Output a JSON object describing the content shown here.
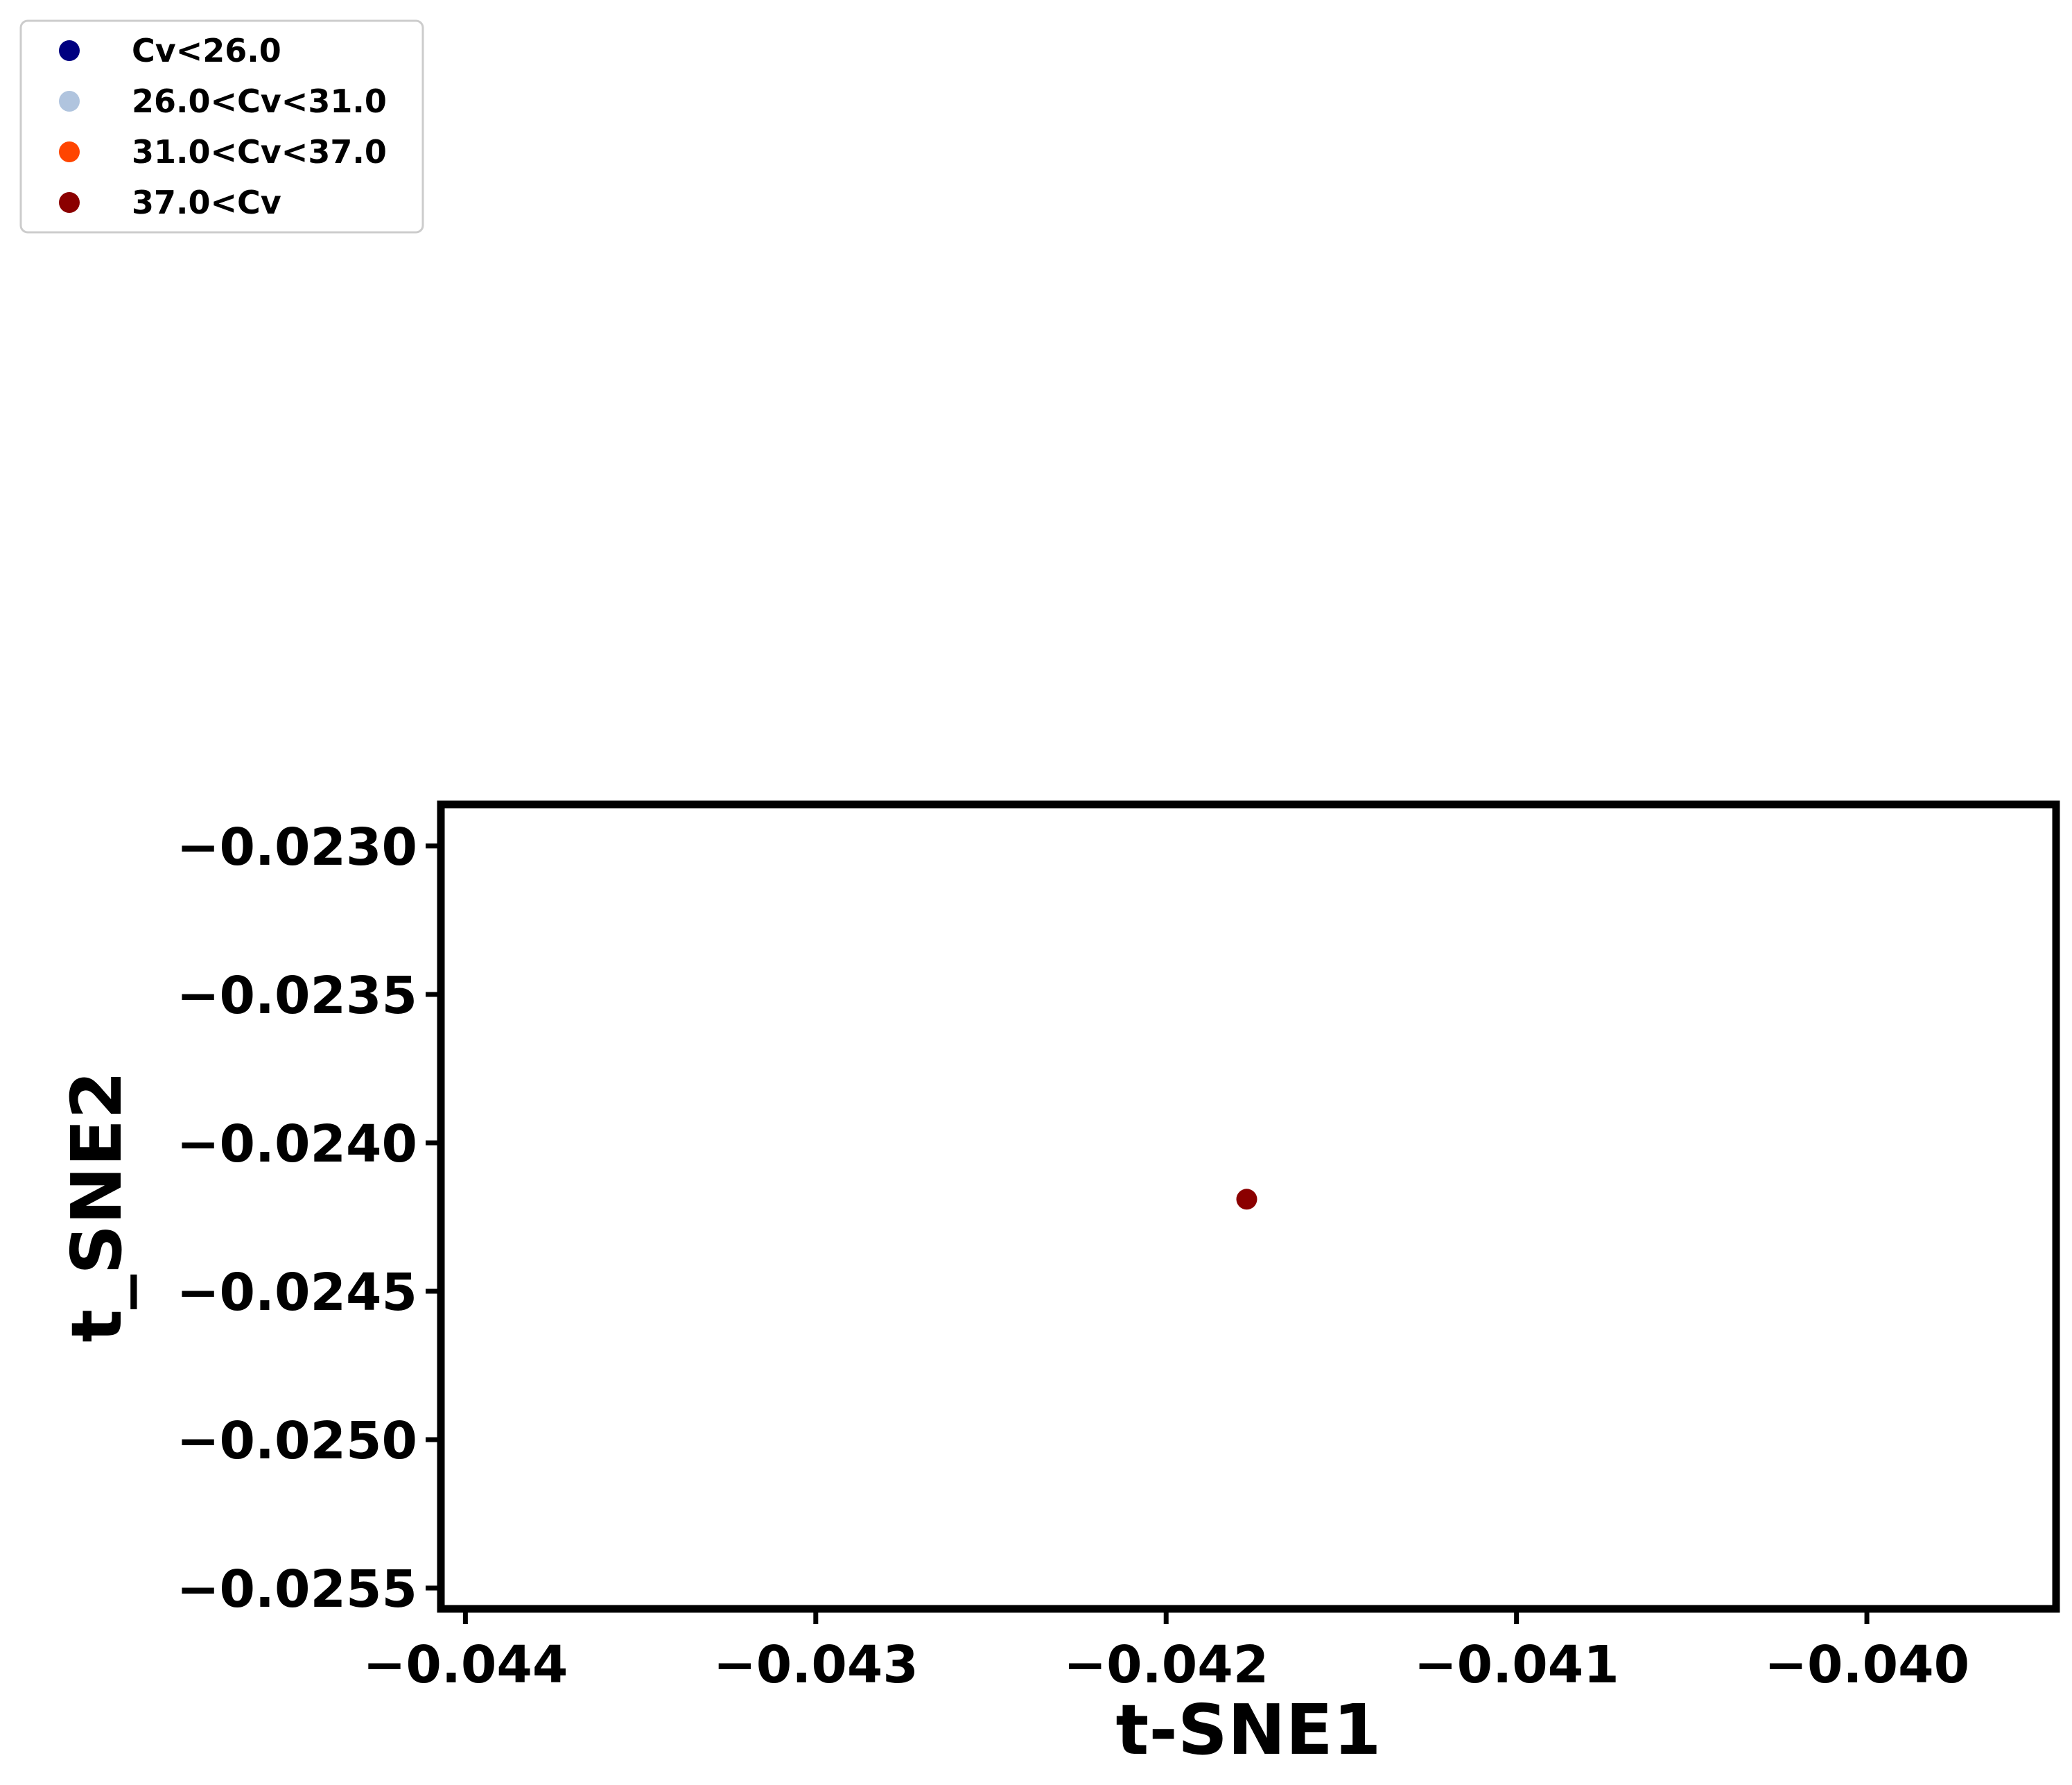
{
  "chart_data": {
    "type": "scatter",
    "title": "",
    "xlabel": "t-SNE1",
    "ylabel": "t_SNE2",
    "xlim": [
      -0.04407,
      -0.03946
    ],
    "ylim": [
      -0.02557,
      -0.02286
    ],
    "xticks": [
      -0.044,
      -0.043,
      -0.042,
      -0.041,
      -0.04
    ],
    "xtick_labels": [
      "−0.044",
      "−0.043",
      "−0.042",
      "−0.041",
      "−0.040"
    ],
    "yticks": [
      -0.023,
      -0.0235,
      -0.024,
      -0.0245,
      -0.025,
      -0.0255
    ],
    "ytick_labels": [
      "−0.0230",
      "−0.0235",
      "−0.0240",
      "−0.0245",
      "−0.0250",
      "−0.0255"
    ],
    "grid": false,
    "legend_position": "top-left",
    "series": [
      {
        "name": "Cv<26.0",
        "color": "#000080",
        "points": []
      },
      {
        "name": "26.0<Cv<31.0",
        "color": "#b0c4de",
        "points": []
      },
      {
        "name": "31.0<Cv<37.0",
        "color": "#ff4500",
        "points": []
      },
      {
        "name": "37.0<Cv",
        "color": "#8b0000",
        "points": [
          [
            -0.04177,
            -0.02419
          ]
        ]
      }
    ]
  }
}
